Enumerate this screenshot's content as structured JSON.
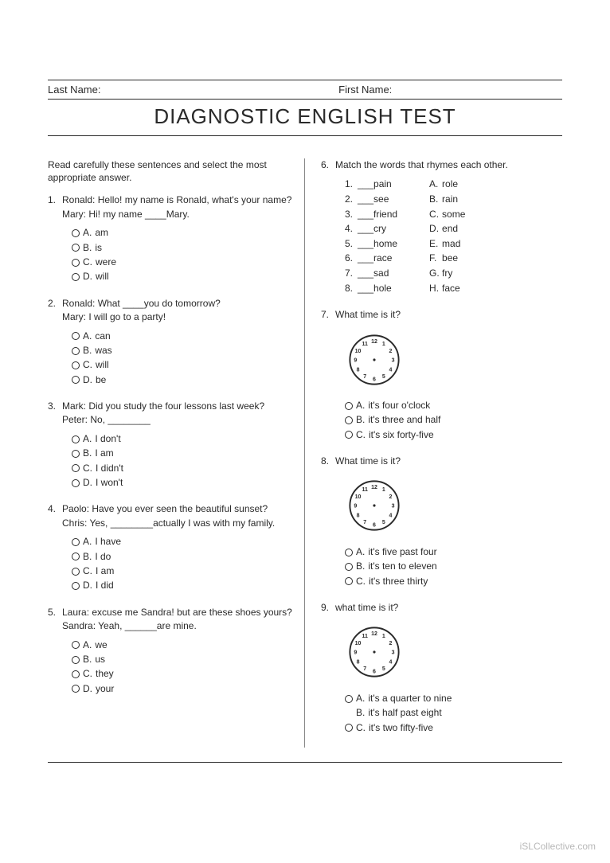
{
  "header": {
    "last_name_label": "Last Name:",
    "first_name_label": "First Name:",
    "title": "DIAGNOSTIC ENGLISH TEST"
  },
  "colors": {
    "text": "#2a2a2a",
    "background": "#ffffff",
    "divider": "#888888",
    "watermark": "#b8b8b8"
  },
  "typography": {
    "body_fontsize": 12,
    "title_fontsize": 26,
    "font_family": "Arial"
  },
  "instructions": "Read carefully these sentences and select the most appropriate answer.",
  "questions_left": [
    {
      "num": "1.",
      "prompt": "Ronald: Hello! my name is Ronald, what's your name?\nMary: Hi! my name ____Mary.",
      "options": [
        {
          "letter": "A.",
          "text": "am"
        },
        {
          "letter": "B.",
          "text": "is"
        },
        {
          "letter": "C.",
          "text": "were"
        },
        {
          "letter": "D.",
          "text": "will"
        }
      ]
    },
    {
      "num": "2.",
      "prompt": "Ronald: What ____you do tomorrow?\nMary: I will go to a party!",
      "options": [
        {
          "letter": "A.",
          "text": "can"
        },
        {
          "letter": "B.",
          "text": "was"
        },
        {
          "letter": "C.",
          "text": "will"
        },
        {
          "letter": "D.",
          "text": "be"
        }
      ]
    },
    {
      "num": "3.",
      "prompt": "Mark: Did you study the four lessons last week?\nPeter: No, ________",
      "options": [
        {
          "letter": "A.",
          "text": "I don't"
        },
        {
          "letter": "B.",
          "text": "I am"
        },
        {
          "letter": "C.",
          "text": "I didn't"
        },
        {
          "letter": "D.",
          "text": "I won't"
        }
      ]
    },
    {
      "num": "4.",
      "prompt": "Paolo: Have you ever seen the beautiful sunset?\nChris: Yes, ________actually I was with my family.",
      "options": [
        {
          "letter": "A.",
          "text": "I have"
        },
        {
          "letter": "B.",
          "text": "I do"
        },
        {
          "letter": "C.",
          "text": "I am"
        },
        {
          "letter": "D.",
          "text": "I did"
        }
      ]
    },
    {
      "num": "5.",
      "prompt": "Laura: excuse me Sandra! but are these shoes yours?\nSandra: Yeah, ______are mine.",
      "options": [
        {
          "letter": "A.",
          "text": "we"
        },
        {
          "letter": "B.",
          "text": "us"
        },
        {
          "letter": "C.",
          "text": "they"
        },
        {
          "letter": "D.",
          "text": "your"
        }
      ]
    }
  ],
  "q6": {
    "num": "6.",
    "prompt": "Match the words that rhymes each other.",
    "left": [
      {
        "n": "1.",
        "w": "___pain"
      },
      {
        "n": "2.",
        "w": "___see"
      },
      {
        "n": "3.",
        "w": "___friend"
      },
      {
        "n": "4.",
        "w": "___cry"
      },
      {
        "n": "5.",
        "w": "___home"
      },
      {
        "n": "6.",
        "w": "___race"
      },
      {
        "n": "7.",
        "w": "___sad"
      },
      {
        "n": "8.",
        "w": "___hole"
      }
    ],
    "right": [
      {
        "n": "A.",
        "w": "role"
      },
      {
        "n": "B.",
        "w": "rain"
      },
      {
        "n": "C.",
        "w": "some"
      },
      {
        "n": "D.",
        "w": "end"
      },
      {
        "n": "E.",
        "w": "mad"
      },
      {
        "n": "F.",
        "w": "bee"
      },
      {
        "n": "G.",
        "w": "fry"
      },
      {
        "n": "H.",
        "w": "face"
      }
    ]
  },
  "q7": {
    "num": "7.",
    "prompt": "What time is it?",
    "options": [
      {
        "letter": "A.",
        "text": "it's four o'clock",
        "radio": true
      },
      {
        "letter": "B.",
        "text": "it's three and half",
        "radio": true
      },
      {
        "letter": "C.",
        "text": "it's six forty-five",
        "radio": true
      }
    ]
  },
  "q8": {
    "num": "8.",
    "prompt": "What time is it?",
    "options": [
      {
        "letter": "A.",
        "text": "it's five past four",
        "radio": true
      },
      {
        "letter": "B.",
        "text": "it's ten to eleven",
        "radio": true
      },
      {
        "letter": "C.",
        "text": "it's three thirty",
        "radio": true
      }
    ]
  },
  "q9": {
    "num": "9.",
    "prompt": "what time is it?",
    "options": [
      {
        "letter": "A.",
        "text": "it's a quarter to nine",
        "radio": true
      },
      {
        "letter": "B.",
        "text": "it's half past eight",
        "radio": false
      },
      {
        "letter": "C.",
        "text": "it's two fifty-five",
        "radio": true
      }
    ]
  },
  "clock": {
    "numbers": [
      "12",
      "1",
      "2",
      "3",
      "4",
      "5",
      "6",
      "7",
      "8",
      "9",
      "10",
      "11"
    ],
    "radius": 35,
    "stroke": "#2a2a2a",
    "face_fill": "#ffffff",
    "number_fontsize": 8
  },
  "watermark": "iSLCollective.com"
}
